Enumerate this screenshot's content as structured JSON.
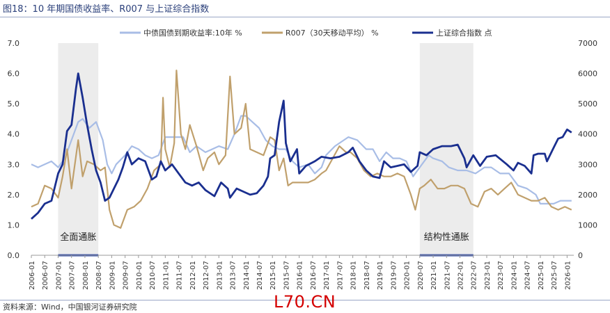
{
  "header": {
    "title": "图18：10 年期国债收益率、R007 与上证综合指数"
  },
  "footer": {
    "source": "资料来源：Wind，中国银河证券研究院"
  },
  "watermark": {
    "text": "L70.CN"
  },
  "colors": {
    "gov10y": "#a8bde6",
    "r007": "#c0a06c",
    "sse": "#1a2f8f",
    "shade": "#ececec"
  },
  "chart_data": {
    "type": "line",
    "x_ticks": [
      "2006-01",
      "2006-07",
      "2007-01",
      "2007-07",
      "2008-01",
      "2008-07",
      "2009-01",
      "2009-07",
      "2010-01",
      "2010-07",
      "2011-01",
      "2011-07",
      "2012-01",
      "2012-07",
      "2013-01",
      "2013-07",
      "2014-01",
      "2014-07",
      "2015-01",
      "2015-07",
      "2016-01",
      "2016-07",
      "2017-01",
      "2017-07",
      "2018-01",
      "2018-07",
      "2019-01",
      "2019-07",
      "2020-01",
      "2020-07",
      "2021-01",
      "2021-07",
      "2022-01",
      "2022-07",
      "2023-01",
      "2023-07",
      "2024-01",
      "2024-07",
      "2025-01",
      "2025-07",
      "2026-01"
    ],
    "y_left": {
      "range": [
        0,
        7
      ],
      "ticks": [
        "0.0",
        "1.0",
        "2.0",
        "3.0",
        "4.0",
        "5.0",
        "6.0",
        "7.0"
      ]
    },
    "y_right": {
      "range": [
        0,
        7000
      ],
      "ticks": [
        "0",
        "1000",
        "2000",
        "3000",
        "4000",
        "5000",
        "6000",
        "7000"
      ]
    },
    "shaded_periods": [
      {
        "label": "全面通胀",
        "start": "2007-01",
        "end": "2008-07"
      },
      {
        "label": "结构性通胀",
        "start": "2020-07",
        "end": "2022-07"
      }
    ],
    "series": [
      {
        "name": "中债国债到期收益率:10年 %",
        "axis": "left",
        "points": [
          [
            "2006-01",
            3.0
          ],
          [
            "2006-04",
            2.9
          ],
          [
            "2006-07",
            3.0
          ],
          [
            "2006-10",
            3.1
          ],
          [
            "2007-01",
            2.9
          ],
          [
            "2007-04",
            3.2
          ],
          [
            "2007-07",
            3.8
          ],
          [
            "2007-10",
            4.4
          ],
          [
            "2007-12",
            4.5
          ],
          [
            "2008-03",
            4.2
          ],
          [
            "2008-06",
            4.4
          ],
          [
            "2008-09",
            3.8
          ],
          [
            "2008-11",
            3.0
          ],
          [
            "2009-01",
            2.7
          ],
          [
            "2009-03",
            3.0
          ],
          [
            "2009-07",
            3.3
          ],
          [
            "2009-10",
            3.6
          ],
          [
            "2010-01",
            3.5
          ],
          [
            "2010-04",
            3.3
          ],
          [
            "2010-07",
            3.2
          ],
          [
            "2010-10",
            3.3
          ],
          [
            "2011-01",
            3.9
          ],
          [
            "2011-04",
            3.9
          ],
          [
            "2011-07",
            3.9
          ],
          [
            "2011-09",
            3.9
          ],
          [
            "2011-12",
            3.4
          ],
          [
            "2012-03",
            3.6
          ],
          [
            "2012-07",
            3.4
          ],
          [
            "2012-10",
            3.5
          ],
          [
            "2013-01",
            3.6
          ],
          [
            "2013-05",
            3.5
          ],
          [
            "2013-08",
            4.0
          ],
          [
            "2013-11",
            4.6
          ],
          [
            "2014-01",
            4.6
          ],
          [
            "2014-04",
            4.4
          ],
          [
            "2014-07",
            4.2
          ],
          [
            "2014-10",
            3.8
          ],
          [
            "2015-01",
            3.6
          ],
          [
            "2015-04",
            3.5
          ],
          [
            "2015-07",
            3.5
          ],
          [
            "2015-10",
            3.1
          ],
          [
            "2016-01",
            2.9
          ],
          [
            "2016-05",
            3.0
          ],
          [
            "2016-08",
            2.7
          ],
          [
            "2016-11",
            2.9
          ],
          [
            "2017-01",
            3.3
          ],
          [
            "2017-05",
            3.6
          ],
          [
            "2017-11",
            3.9
          ],
          [
            "2018-03",
            3.8
          ],
          [
            "2018-07",
            3.5
          ],
          [
            "2018-10",
            3.5
          ],
          [
            "2019-01",
            3.1
          ],
          [
            "2019-04",
            3.4
          ],
          [
            "2019-07",
            3.2
          ],
          [
            "2019-10",
            3.2
          ],
          [
            "2020-01",
            3.1
          ],
          [
            "2020-04",
            2.6
          ],
          [
            "2020-07",
            2.9
          ],
          [
            "2020-11",
            3.3
          ],
          [
            "2021-01",
            3.2
          ],
          [
            "2021-05",
            3.1
          ],
          [
            "2021-08",
            2.9
          ],
          [
            "2021-12",
            2.8
          ],
          [
            "2022-04",
            2.8
          ],
          [
            "2022-08",
            2.7
          ],
          [
            "2022-12",
            2.9
          ],
          [
            "2023-03",
            2.9
          ],
          [
            "2023-07",
            2.7
          ],
          [
            "2023-11",
            2.7
          ],
          [
            "2024-03",
            2.3
          ],
          [
            "2024-07",
            2.2
          ],
          [
            "2024-11",
            2.0
          ],
          [
            "2025-01",
            1.7
          ],
          [
            "2025-04",
            1.7
          ],
          [
            "2025-07",
            1.7
          ],
          [
            "2025-10",
            1.8
          ],
          [
            "2026-01",
            1.8
          ],
          [
            "2026-03",
            1.8
          ]
        ]
      },
      {
        "name": "R007（30天移动平均） %",
        "axis": "left",
        "points": [
          [
            "2006-01",
            1.6
          ],
          [
            "2006-04",
            1.7
          ],
          [
            "2006-07",
            2.3
          ],
          [
            "2006-10",
            2.2
          ],
          [
            "2007-01",
            1.9
          ],
          [
            "2007-03",
            2.6
          ],
          [
            "2007-05",
            3.5
          ],
          [
            "2007-07",
            2.2
          ],
          [
            "2007-10",
            3.8
          ],
          [
            "2007-12",
            2.6
          ],
          [
            "2008-02",
            3.1
          ],
          [
            "2008-05",
            3.0
          ],
          [
            "2008-08",
            2.8
          ],
          [
            "2008-10",
            2.9
          ],
          [
            "2008-12",
            1.5
          ],
          [
            "2009-02",
            1.0
          ],
          [
            "2009-05",
            0.9
          ],
          [
            "2009-08",
            1.5
          ],
          [
            "2009-11",
            1.6
          ],
          [
            "2010-02",
            1.8
          ],
          [
            "2010-05",
            2.2
          ],
          [
            "2010-08",
            2.8
          ],
          [
            "2010-11",
            3.0
          ],
          [
            "2010-12",
            5.2
          ],
          [
            "2011-01",
            3.5
          ],
          [
            "2011-03",
            2.9
          ],
          [
            "2011-05",
            3.7
          ],
          [
            "2011-06",
            6.1
          ],
          [
            "2011-08",
            4.0
          ],
          [
            "2011-10",
            3.5
          ],
          [
            "2011-12",
            4.3
          ],
          [
            "2012-03",
            3.6
          ],
          [
            "2012-06",
            2.8
          ],
          [
            "2012-08",
            3.2
          ],
          [
            "2012-11",
            3.4
          ],
          [
            "2013-01",
            3.0
          ],
          [
            "2013-04",
            3.3
          ],
          [
            "2013-06",
            5.9
          ],
          [
            "2013-08",
            4.0
          ],
          [
            "2013-11",
            4.2
          ],
          [
            "2014-01",
            5.0
          ],
          [
            "2014-03",
            3.5
          ],
          [
            "2014-06",
            3.4
          ],
          [
            "2014-09",
            3.3
          ],
          [
            "2014-12",
            3.9
          ],
          [
            "2015-02",
            3.8
          ],
          [
            "2015-04",
            2.8
          ],
          [
            "2015-06",
            3.2
          ],
          [
            "2015-08",
            2.3
          ],
          [
            "2015-10",
            2.4
          ],
          [
            "2016-01",
            2.4
          ],
          [
            "2016-05",
            2.4
          ],
          [
            "2016-08",
            2.5
          ],
          [
            "2016-11",
            2.7
          ],
          [
            "2017-01",
            2.8
          ],
          [
            "2017-04",
            3.2
          ],
          [
            "2017-07",
            3.6
          ],
          [
            "2017-10",
            3.4
          ],
          [
            "2017-12",
            3.4
          ],
          [
            "2018-03",
            3.2
          ],
          [
            "2018-06",
            2.8
          ],
          [
            "2018-09",
            2.6
          ],
          [
            "2018-12",
            2.7
          ],
          [
            "2019-03",
            2.6
          ],
          [
            "2019-06",
            2.6
          ],
          [
            "2019-09",
            2.7
          ],
          [
            "2019-12",
            2.6
          ],
          [
            "2020-03",
            2.0
          ],
          [
            "2020-05",
            1.5
          ],
          [
            "2020-07",
            2.2
          ],
          [
            "2020-09",
            2.3
          ],
          [
            "2020-12",
            2.5
          ],
          [
            "2021-03",
            2.2
          ],
          [
            "2021-06",
            2.2
          ],
          [
            "2021-09",
            2.3
          ],
          [
            "2021-12",
            2.3
          ],
          [
            "2022-03",
            2.2
          ],
          [
            "2022-06",
            1.7
          ],
          [
            "2022-09",
            1.6
          ],
          [
            "2022-12",
            2.1
          ],
          [
            "2023-03",
            2.2
          ],
          [
            "2023-06",
            2.0
          ],
          [
            "2023-09",
            2.2
          ],
          [
            "2023-12",
            2.4
          ],
          [
            "2024-03",
            2.0
          ],
          [
            "2024-06",
            1.9
          ],
          [
            "2024-09",
            1.8
          ],
          [
            "2024-12",
            1.8
          ],
          [
            "2025-03",
            1.9
          ],
          [
            "2025-06",
            1.6
          ],
          [
            "2025-09",
            1.5
          ],
          [
            "2025-12",
            1.6
          ],
          [
            "2026-03",
            1.5
          ]
        ]
      },
      {
        "name": "上证综合指数 点",
        "axis": "right",
        "points": [
          [
            "2006-01",
            1200
          ],
          [
            "2006-04",
            1400
          ],
          [
            "2006-07",
            1700
          ],
          [
            "2006-10",
            1800
          ],
          [
            "2007-01",
            2700
          ],
          [
            "2007-03",
            3000
          ],
          [
            "2007-05",
            4100
          ],
          [
            "2007-07",
            4300
          ],
          [
            "2007-09",
            5500
          ],
          [
            "2007-10",
            6000
          ],
          [
            "2007-12",
            5200
          ],
          [
            "2008-02",
            4300
          ],
          [
            "2008-04",
            3500
          ],
          [
            "2008-06",
            2800
          ],
          [
            "2008-08",
            2400
          ],
          [
            "2008-10",
            1800
          ],
          [
            "2008-12",
            1900
          ],
          [
            "2009-02",
            2200
          ],
          [
            "2009-04",
            2500
          ],
          [
            "2009-06",
            2900
          ],
          [
            "2009-08",
            3400
          ],
          [
            "2009-10",
            3000
          ],
          [
            "2010-01",
            3200
          ],
          [
            "2010-04",
            3100
          ],
          [
            "2010-07",
            2500
          ],
          [
            "2010-09",
            2600
          ],
          [
            "2010-11",
            3100
          ],
          [
            "2011-01",
            2800
          ],
          [
            "2011-04",
            3000
          ],
          [
            "2011-07",
            2700
          ],
          [
            "2011-10",
            2400
          ],
          [
            "2012-01",
            2300
          ],
          [
            "2012-04",
            2400
          ],
          [
            "2012-07",
            2150
          ],
          [
            "2012-11",
            1950
          ],
          [
            "2013-02",
            2400
          ],
          [
            "2013-05",
            2200
          ],
          [
            "2013-06",
            1900
          ],
          [
            "2013-09",
            2200
          ],
          [
            "2013-12",
            2100
          ],
          [
            "2014-03",
            2000
          ],
          [
            "2014-06",
            2050
          ],
          [
            "2014-09",
            2300
          ],
          [
            "2014-11",
            2600
          ],
          [
            "2014-12",
            3200
          ],
          [
            "2015-02",
            3300
          ],
          [
            "2015-04",
            4400
          ],
          [
            "2015-06",
            5100
          ],
          [
            "2015-07",
            3700
          ],
          [
            "2015-09",
            3100
          ],
          [
            "2015-12",
            3500
          ],
          [
            "2016-01",
            2700
          ],
          [
            "2016-04",
            2950
          ],
          [
            "2016-08",
            3100
          ],
          [
            "2016-11",
            3250
          ],
          [
            "2017-03",
            3200
          ],
          [
            "2017-07",
            3250
          ],
          [
            "2017-11",
            3400
          ],
          [
            "2018-01",
            3550
          ],
          [
            "2018-04",
            3100
          ],
          [
            "2018-07",
            2800
          ],
          [
            "2018-10",
            2600
          ],
          [
            "2019-01",
            2550
          ],
          [
            "2019-03",
            3100
          ],
          [
            "2019-06",
            2900
          ],
          [
            "2019-09",
            2950
          ],
          [
            "2019-12",
            3000
          ],
          [
            "2020-03",
            2750
          ],
          [
            "2020-06",
            2950
          ],
          [
            "2020-07",
            3400
          ],
          [
            "2020-10",
            3300
          ],
          [
            "2021-01",
            3500
          ],
          [
            "2021-05",
            3600
          ],
          [
            "2021-09",
            3600
          ],
          [
            "2021-12",
            3650
          ],
          [
            "2022-03",
            3200
          ],
          [
            "2022-04",
            2900
          ],
          [
            "2022-07",
            3300
          ],
          [
            "2022-10",
            2950
          ],
          [
            "2023-01",
            3250
          ],
          [
            "2023-05",
            3300
          ],
          [
            "2023-10",
            3000
          ],
          [
            "2024-01",
            2800
          ],
          [
            "2024-03",
            3050
          ],
          [
            "2024-06",
            2950
          ],
          [
            "2024-09",
            2700
          ],
          [
            "2024-10",
            3300
          ],
          [
            "2024-12",
            3350
          ],
          [
            "2025-03",
            3350
          ],
          [
            "2025-04",
            3100
          ],
          [
            "2025-07",
            3550
          ],
          [
            "2025-09",
            3850
          ],
          [
            "2025-11",
            3900
          ],
          [
            "2026-01",
            4150
          ],
          [
            "2026-03",
            4050
          ]
        ]
      }
    ]
  }
}
